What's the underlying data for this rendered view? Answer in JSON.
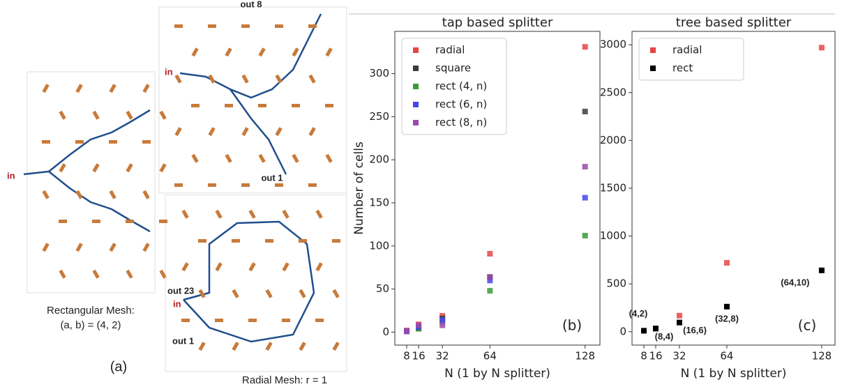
{
  "diagrams": {
    "rect_mesh": {
      "in": "in",
      "caption_1": "Rectangular  Mesh:",
      "caption_2": "(a, b) = (4, 2)"
    },
    "radial_top": {
      "in": "in",
      "out_top": "out 8",
      "out_bottom": "out 1"
    },
    "radial_bottom": {
      "in": "in",
      "out_left": "out 23",
      "out_bottom": "out 1",
      "caption": "Radial  Mesh: r = 1"
    },
    "panel_label": "(a)"
  },
  "chart_data": [
    {
      "type": "scatter",
      "title": "tap based splitter",
      "x_label": "N (1 by N splitter)",
      "y_label": "Number of cells",
      "panel_label": "(b)",
      "x": [
        8,
        16,
        32,
        64,
        128
      ],
      "xlim": [
        0,
        138
      ],
      "xticks": [
        8,
        16,
        32,
        64,
        128
      ],
      "ylim": [
        -15,
        349
      ],
      "yticks": [
        0,
        50,
        100,
        150,
        200,
        250,
        300
      ],
      "legend": "upper left",
      "series": [
        {
          "name": "radial",
          "color": "#e84545",
          "values": [
            2,
            9,
            19,
            91,
            331
          ]
        },
        {
          "name": "square",
          "color": "#3c3c3c",
          "values": [
            1,
            4,
            16,
            64,
            256
          ]
        },
        {
          "name": "rect (4, n)",
          "color": "#3a9a3a",
          "values": [
            1,
            4,
            12,
            48,
            112
          ]
        },
        {
          "name": "rect (6, n)",
          "color": "#4545ee",
          "values": [
            1,
            6,
            14,
            60,
            156
          ]
        },
        {
          "name": "rect (8, n)",
          "color": "#9a4aaa",
          "values": [
            1,
            8,
            8,
            64,
            192
          ]
        }
      ]
    },
    {
      "type": "scatter",
      "title": "tree based splitter",
      "x_label": "N (1 by N splitter)",
      "panel_label": "(c)",
      "x": [
        8,
        16,
        32,
        64,
        128
      ],
      "xlim": [
        0,
        137
      ],
      "xticks": [
        8,
        16,
        32,
        64,
        128
      ],
      "ylim": [
        -140,
        3140
      ],
      "yticks": [
        0,
        500,
        1000,
        1500,
        2000,
        2500,
        3000
      ],
      "legend": "upper left",
      "series": [
        {
          "name": "radial",
          "color": "#e84545",
          "values": [
            10,
            36,
            168,
            720,
            2970
          ]
        },
        {
          "name": "rect",
          "color": "#000000",
          "values": [
            10,
            32,
            96,
            262,
            641
          ],
          "point_labels": [
            "(4,2)",
            "(8,4)",
            "(16,6)",
            "(32,8)",
            "(64,10)"
          ]
        }
      ]
    }
  ]
}
